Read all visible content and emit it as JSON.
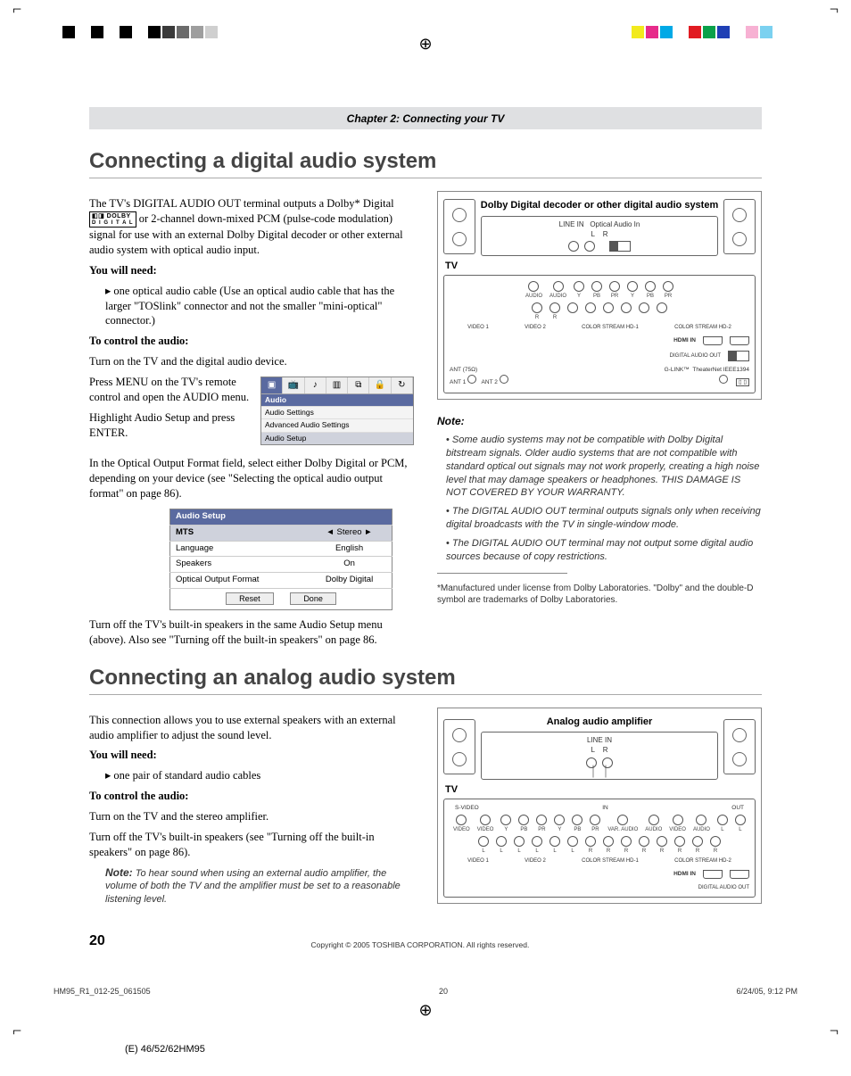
{
  "colorbar": {
    "left": [
      "#000000",
      "#ffffff",
      "#000000",
      "#ffffff",
      "#000000",
      "#ffffff",
      "#000000",
      "#3a3a3a",
      "#6b6b6b",
      "#9e9e9e",
      "#cfcfcf",
      "#ffffff"
    ],
    "right": [
      "#f2ea1d",
      "#e72b8a",
      "#00a9e6",
      "#ffffff",
      "#e11b22",
      "#0aa14a",
      "#1f3fb5",
      "#ffffff",
      "#f7b1d3",
      "#7bd1f0",
      "#ffffff"
    ]
  },
  "chapter": "Chapter 2: Connecting your TV",
  "section1": {
    "title": "Connecting a digital audio system",
    "intro": "The TV's DIGITAL AUDIO OUT terminal outputs a Dolby* Digital",
    "intro2": " or 2-channel down-mixed PCM (pulse-code modulation) signal for use with an external Dolby Digital decoder or other external audio system with optical audio input.",
    "need_h": "You will need:",
    "need_item": "one optical audio cable (Use an optical audio cable that has the larger \"TOSlink\" connector and not the smaller \"mini-optical\" connector.)",
    "control_h": "To control the audio:",
    "step1": "Turn on the TV and the digital audio device.",
    "step2": "Press MENU on the TV's remote control and open the AUDIO menu.",
    "step3": "Highlight Audio Setup and press ENTER.",
    "step4": "In the Optical Output Format field, select either Dolby Digital or PCM, depending on your device (see \"Selecting the optical audio output format\" on page 86).",
    "step5": "Turn off the TV's built-in speakers in the same Audio Setup menu (above). Also see \"Turning off the built-in speakers\" on page 86.",
    "menu": {
      "header": "Audio",
      "items": [
        "Audio Settings",
        "Advanced Audio Settings",
        "Audio Setup"
      ],
      "icons": [
        "▣",
        "📺",
        "♪",
        "▥",
        "⧉",
        "🔒",
        "↻"
      ]
    },
    "audio_setup_table": {
      "title": "Audio Setup",
      "rows": [
        {
          "k": "MTS",
          "v": "Stereo",
          "sel": true,
          "arrows": true
        },
        {
          "k": "Language",
          "v": "English"
        },
        {
          "k": "Speakers",
          "v": "On"
        },
        {
          "k": "Optical Output Format",
          "v": "Dolby Digital"
        }
      ],
      "buttons": [
        "Reset",
        "Done"
      ]
    },
    "diagram_title": "Dolby Digital decoder or other digital audio system",
    "tv_label": "TV",
    "amp_labels": {
      "line_in": "LINE IN",
      "l": "L",
      "r": "R",
      "opt": "Optical Audio In"
    },
    "tv_jacks": {
      "groups": [
        "AUDIO",
        "AUDIO",
        "Y",
        "PB",
        "PR",
        "Y",
        "PB",
        "PR"
      ],
      "row2": [
        "R",
        "R",
        "",
        "",
        "",
        "",
        "",
        ""
      ],
      "labels": [
        "VIDEO 1",
        "VIDEO 2",
        "COLOR STREAM HD-1",
        "COLOR STREAM HD-2"
      ],
      "hdmi": "HDMI IN",
      "digital_out": "DIGITAL AUDIO OUT",
      "glink": "G-LINK™",
      "theaternet": "TheaterNet IEEE1394",
      "ant": "ANT (75Ω)",
      "ant1": "ANT 1",
      "ant2": "ANT 2"
    },
    "note_h": "Note:",
    "notes": [
      "Some audio systems may not be compatible with Dolby Digital bitstream signals. Older audio systems that are not compatible with standard optical out signals may not work properly, creating a high noise level that may damage speakers or headphones. THIS DAMAGE IS NOT COVERED BY YOUR WARRANTY.",
      "The DIGITAL AUDIO OUT terminal outputs signals only when receiving digital broadcasts with the TV in single-window mode.",
      "The DIGITAL AUDIO OUT terminal may not output some digital audio sources because of copy restrictions."
    ],
    "footnote": "*Manufactured under license from Dolby Laboratories. \"Dolby\" and the double-D symbol are trademarks of Dolby Laboratories."
  },
  "section2": {
    "title": "Connecting an analog audio system",
    "intro": "This connection allows you to use external speakers with an external audio amplifier to adjust the sound level.",
    "need_h": "You will need:",
    "need_item": "one pair of standard audio cables",
    "control_h": "To control the audio:",
    "step1": "Turn on the TV and the stereo amplifier.",
    "step2": "Turn off the TV's built-in speakers (see \"Turning off the built-in speakers\" on page 86).",
    "note_label": "Note:",
    "note": " To hear sound when using an external audio amplifier, the volume of both the TV and the amplifier must be set to a reasonable listening level.",
    "diagram_title": "Analog audio amplifier",
    "tv_label": "TV",
    "tv_jacks": {
      "svideo": "S-VIDEO",
      "in": "IN",
      "out": "OUT",
      "groups": [
        "VIDEO",
        "VIDEO",
        "Y",
        "PB",
        "PR",
        "Y",
        "PB",
        "PR",
        "VAR. AUDIO",
        "AUDIO",
        "VIDEO",
        "AUDIO"
      ],
      "mono": "(MONO)",
      "labels": [
        "VIDEO 1",
        "VIDEO 2",
        "COLOR STREAM HD-1",
        "COLOR STREAM HD-2"
      ],
      "hdmi": "HDMI IN",
      "digital_out": "DIGITAL AUDIO OUT"
    }
  },
  "page_number": "20",
  "copyright": "Copyright © 2005 TOSHIBA CORPORATION. All rights reserved.",
  "meta": {
    "file": "HM95_R1_012-25_061505",
    "page": "20",
    "timestamp": "6/24/05, 9:12 PM"
  },
  "bottom_label": "(E) 46/52/62HM95",
  "dolby": {
    "top": "◧◨ DOLBY",
    "bot": "D I G I T A L"
  }
}
